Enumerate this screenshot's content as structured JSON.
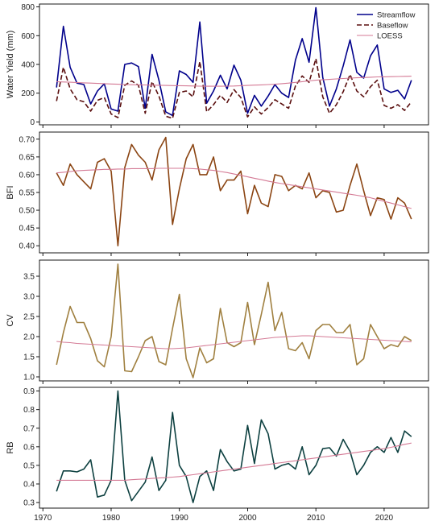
{
  "chart_data": [
    {
      "type": "line",
      "ylabel": "Water Yield (mm)",
      "ylim": [
        -20,
        820
      ],
      "yticks": [
        0,
        200,
        400,
        600,
        800
      ],
      "xlim": [
        1969.5,
        2026.5
      ],
      "xticks": [
        1970,
        1980,
        1990,
        2000,
        2010,
        2020
      ],
      "show_xtick_labels": false,
      "legend": {
        "position": "top-right",
        "entries": [
          "Streamflow",
          "Baseflow",
          "LOESS"
        ]
      },
      "x": [
        1972,
        1973,
        1974,
        1975,
        1976,
        1977,
        1978,
        1979,
        1980,
        1981,
        1982,
        1983,
        1984,
        1985,
        1986,
        1987,
        1988,
        1989,
        1990,
        1991,
        1992,
        1993,
        1994,
        1995,
        1996,
        1997,
        1998,
        1999,
        2000,
        2001,
        2002,
        2003,
        2004,
        2005,
        2006,
        2007,
        2008,
        2009,
        2010,
        2011,
        2012,
        2013,
        2014,
        2015,
        2016,
        2017,
        2018,
        2019,
        2020,
        2021,
        2022,
        2023,
        2024
      ],
      "series": [
        {
          "name": "Streamflow",
          "color": "#00008b",
          "dash": "solid",
          "values": [
            240,
            665,
            380,
            270,
            260,
            125,
            215,
            265,
            90,
            75,
            400,
            410,
            385,
            95,
            470,
            290,
            70,
            45,
            355,
            330,
            275,
            695,
            130,
            215,
            325,
            230,
            395,
            290,
            60,
            185,
            110,
            180,
            260,
            200,
            170,
            430,
            580,
            415,
            795,
            310,
            110,
            230,
            390,
            570,
            345,
            305,
            460,
            535,
            230,
            205,
            220,
            160,
            290
          ]
        },
        {
          "name": "Baseflow",
          "color": "#5a0f0f",
          "dash": "6,3",
          "values": [
            145,
            380,
            230,
            155,
            140,
            75,
            150,
            170,
            55,
            30,
            255,
            285,
            255,
            60,
            280,
            180,
            40,
            25,
            205,
            215,
            175,
            420,
            70,
            120,
            185,
            135,
            225,
            170,
            35,
            105,
            55,
            100,
            155,
            125,
            95,
            250,
            320,
            275,
            440,
            175,
            60,
            120,
            210,
            330,
            215,
            175,
            245,
            290,
            115,
            95,
            120,
            80,
            140
          ]
        },
        {
          "name": "LOESS",
          "color": "#d47a95",
          "dash": "solid",
          "values": [
            280,
            278,
            276,
            274,
            272,
            270,
            268,
            266,
            264,
            262,
            260,
            259,
            258,
            257,
            256,
            255,
            254,
            253,
            252,
            251,
            250,
            249,
            248,
            248,
            248,
            249,
            250,
            252,
            254,
            256,
            258,
            260,
            262,
            266,
            270,
            275,
            280,
            285,
            290,
            293,
            296,
            299,
            302,
            305,
            307,
            309,
            311,
            313,
            314,
            315,
            316,
            317,
            318
          ]
        }
      ]
    },
    {
      "type": "line",
      "ylabel": "BFI",
      "ylim": [
        0.38,
        0.72
      ],
      "yticks": [
        0.4,
        0.45,
        0.5,
        0.55,
        0.6,
        0.65,
        0.7
      ],
      "xlim": [
        1969.5,
        2026.5
      ],
      "xticks": [
        1970,
        1980,
        1990,
        2000,
        2010,
        2020
      ],
      "show_xtick_labels": false,
      "x": [
        1972,
        1973,
        1974,
        1975,
        1976,
        1977,
        1978,
        1979,
        1980,
        1981,
        1982,
        1983,
        1984,
        1985,
        1986,
        1987,
        1988,
        1989,
        1990,
        1991,
        1992,
        1993,
        1994,
        1995,
        1996,
        1997,
        1998,
        1999,
        2000,
        2001,
        2002,
        2003,
        2004,
        2005,
        2006,
        2007,
        2008,
        2009,
        2010,
        2011,
        2012,
        2013,
        2014,
        2015,
        2016,
        2017,
        2018,
        2019,
        2020,
        2021,
        2022,
        2023,
        2024
      ],
      "series": [
        {
          "name": "",
          "color": "#8b4513",
          "dash": "solid",
          "values": [
            0.605,
            0.57,
            0.63,
            0.6,
            0.58,
            0.56,
            0.635,
            0.645,
            0.61,
            0.4,
            0.62,
            0.685,
            0.655,
            0.635,
            0.585,
            0.67,
            0.705,
            0.46,
            0.56,
            0.645,
            0.685,
            0.6,
            0.6,
            0.65,
            0.555,
            0.585,
            0.585,
            0.61,
            0.49,
            0.57,
            0.52,
            0.51,
            0.6,
            0.595,
            0.555,
            0.57,
            0.56,
            0.605,
            0.535,
            0.555,
            0.55,
            0.495,
            0.5,
            0.57,
            0.63,
            0.555,
            0.485,
            0.535,
            0.53,
            0.475,
            0.535,
            0.52,
            0.475
          ]
        },
        {
          "name": "",
          "color": "#d47a95",
          "dash": "solid",
          "values": [
            0.605,
            0.607,
            0.609,
            0.611,
            0.612,
            0.613,
            0.614,
            0.615,
            0.615,
            0.616,
            0.616,
            0.617,
            0.617,
            0.617,
            0.617,
            0.618,
            0.618,
            0.618,
            0.618,
            0.618,
            0.617,
            0.616,
            0.614,
            0.612,
            0.609,
            0.606,
            0.602,
            0.598,
            0.594,
            0.59,
            0.586,
            0.582,
            0.578,
            0.575,
            0.572,
            0.569,
            0.566,
            0.563,
            0.56,
            0.557,
            0.554,
            0.551,
            0.548,
            0.545,
            0.542,
            0.539,
            0.535,
            0.53,
            0.525,
            0.52,
            0.515,
            0.51,
            0.505
          ]
        }
      ]
    },
    {
      "type": "line",
      "ylabel": "CV",
      "ylim": [
        0.9,
        3.9
      ],
      "yticks": [
        1.0,
        1.5,
        2.0,
        2.5,
        3.0,
        3.5
      ],
      "xlim": [
        1969.5,
        2026.5
      ],
      "xticks": [
        1970,
        1980,
        1990,
        2000,
        2010,
        2020
      ],
      "show_xtick_labels": false,
      "x": [
        1972,
        1973,
        1974,
        1975,
        1976,
        1977,
        1978,
        1979,
        1980,
        1981,
        1982,
        1983,
        1984,
        1985,
        1986,
        1987,
        1988,
        1989,
        1990,
        1991,
        1992,
        1993,
        1994,
        1995,
        1996,
        1997,
        1998,
        1999,
        2000,
        2001,
        2002,
        2003,
        2004,
        2005,
        2006,
        2007,
        2008,
        2009,
        2010,
        2011,
        2012,
        2013,
        2014,
        2015,
        2016,
        2017,
        2018,
        2019,
        2020,
        2021,
        2022,
        2023,
        2024
      ],
      "series": [
        {
          "name": "",
          "color": "#a08040",
          "dash": "solid",
          "values": [
            1.3,
            2.1,
            2.75,
            2.35,
            2.35,
            1.95,
            1.4,
            1.25,
            2.0,
            3.8,
            1.15,
            1.13,
            1.5,
            1.9,
            2.0,
            1.38,
            1.3,
            2.2,
            3.05,
            1.45,
            0.98,
            1.72,
            1.35,
            1.45,
            2.7,
            1.85,
            1.75,
            1.85,
            2.85,
            1.8,
            2.55,
            3.35,
            2.15,
            2.6,
            1.7,
            1.65,
            1.85,
            1.45,
            2.15,
            2.3,
            2.3,
            2.1,
            2.1,
            2.3,
            1.3,
            1.45,
            2.3,
            2.0,
            1.7,
            1.8,
            1.75,
            2.0,
            1.9
          ]
        },
        {
          "name": "",
          "color": "#d47a95",
          "dash": "solid",
          "values": [
            1.88,
            1.86,
            1.85,
            1.83,
            1.82,
            1.81,
            1.8,
            1.79,
            1.78,
            1.77,
            1.76,
            1.75,
            1.74,
            1.73,
            1.72,
            1.71,
            1.7,
            1.7,
            1.71,
            1.72,
            1.74,
            1.76,
            1.78,
            1.8,
            1.82,
            1.84,
            1.86,
            1.88,
            1.9,
            1.92,
            1.94,
            1.96,
            1.98,
            1.99,
            2.0,
            2.01,
            2.02,
            2.02,
            2.01,
            2.0,
            1.99,
            1.98,
            1.97,
            1.96,
            1.95,
            1.94,
            1.93,
            1.92,
            1.91,
            1.9,
            1.89,
            1.88,
            1.87
          ]
        }
      ]
    },
    {
      "type": "line",
      "ylabel": "RB",
      "ylim": [
        0.27,
        0.92
      ],
      "yticks": [
        0.3,
        0.4,
        0.5,
        0.6,
        0.7,
        0.8,
        0.9
      ],
      "xlim": [
        1969.5,
        2026.5
      ],
      "xticks": [
        1970,
        1980,
        1990,
        2000,
        2010,
        2020
      ],
      "show_xtick_labels": true,
      "x": [
        1972,
        1973,
        1974,
        1975,
        1976,
        1977,
        1978,
        1979,
        1980,
        1981,
        1982,
        1983,
        1984,
        1985,
        1986,
        1987,
        1988,
        1989,
        1990,
        1991,
        1992,
        1993,
        1994,
        1995,
        1996,
        1997,
        1998,
        1999,
        2000,
        2001,
        2002,
        2003,
        2004,
        2005,
        2006,
        2007,
        2008,
        2009,
        2010,
        2011,
        2012,
        2013,
        2014,
        2015,
        2016,
        2017,
        2018,
        2019,
        2020,
        2021,
        2022,
        2023,
        2024
      ],
      "series": [
        {
          "name": "",
          "color": "#0d4040",
          "dash": "solid",
          "values": [
            0.36,
            0.47,
            0.47,
            0.465,
            0.48,
            0.53,
            0.33,
            0.34,
            0.42,
            0.9,
            0.42,
            0.31,
            0.36,
            0.41,
            0.545,
            0.365,
            0.42,
            0.785,
            0.5,
            0.44,
            0.3,
            0.44,
            0.47,
            0.365,
            0.585,
            0.52,
            0.47,
            0.48,
            0.715,
            0.51,
            0.745,
            0.67,
            0.48,
            0.5,
            0.51,
            0.48,
            0.6,
            0.45,
            0.5,
            0.59,
            0.595,
            0.55,
            0.64,
            0.575,
            0.45,
            0.5,
            0.57,
            0.6,
            0.57,
            0.65,
            0.57,
            0.685,
            0.655
          ]
        },
        {
          "name": "",
          "color": "#d47a95",
          "dash": "solid",
          "values": [
            0.42,
            0.42,
            0.42,
            0.42,
            0.42,
            0.42,
            0.42,
            0.42,
            0.42,
            0.42,
            0.42,
            0.423,
            0.425,
            0.427,
            0.43,
            0.432,
            0.434,
            0.437,
            0.44,
            0.445,
            0.45,
            0.455,
            0.46,
            0.465,
            0.47,
            0.475,
            0.48,
            0.485,
            0.49,
            0.495,
            0.5,
            0.505,
            0.51,
            0.515,
            0.52,
            0.525,
            0.53,
            0.535,
            0.54,
            0.545,
            0.55,
            0.555,
            0.56,
            0.565,
            0.57,
            0.575,
            0.58,
            0.585,
            0.59,
            0.597,
            0.605,
            0.613,
            0.62
          ]
        }
      ]
    }
  ]
}
